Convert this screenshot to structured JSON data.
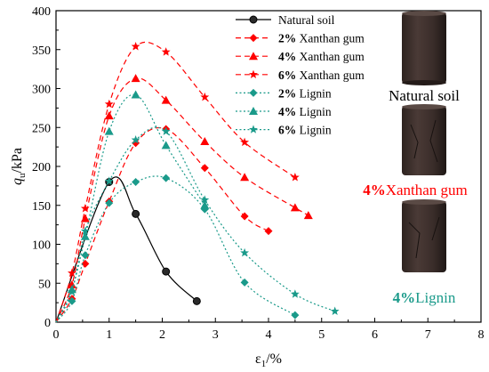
{
  "chart_data": {
    "type": "line",
    "xlabel": "ε₁/%",
    "ylabel": "qᵤ/kPa",
    "ylabel_main": "q",
    "ylabel_sub": "u",
    "ylabel_unit": "/kPa",
    "xlabel_main": "ε",
    "xlabel_sub": "1",
    "xlabel_unit": "/%",
    "xlim": [
      0,
      8
    ],
    "ylim": [
      0,
      400
    ],
    "x_ticks": [
      "0",
      "1",
      "2",
      "3",
      "4",
      "5",
      "6",
      "7",
      "8"
    ],
    "y_ticks": [
      "0",
      "50",
      "100",
      "150",
      "200",
      "250",
      "300",
      "350",
      "400"
    ],
    "grid": false,
    "legend_position": "top-center",
    "series": [
      {
        "name": "Natural soil",
        "legend_bold": "",
        "legend_rest": "Natural soil",
        "color": "#000000",
        "marker": "circle",
        "line": "solid",
        "x": [
          0,
          1.0,
          1.5,
          2.07,
          2.65
        ],
        "y": [
          0,
          180,
          139,
          65,
          27
        ]
      },
      {
        "name": "2% Xanthan gum",
        "legend_bold": "2%",
        "legend_rest": " Xanthan gum",
        "color": "#ff0000",
        "marker": "diamond",
        "line": "dashed",
        "x": [
          0,
          0.3,
          0.55,
          1.0,
          1.5,
          2.07,
          2.8,
          3.55,
          4.0
        ],
        "y": [
          0,
          30,
          75,
          155,
          230,
          248,
          198,
          136,
          117
        ]
      },
      {
        "name": "4% Xanthan gum",
        "legend_bold": "4%",
        "legend_rest": " Xanthan gum",
        "color": "#ff0000",
        "marker": "triangle",
        "line": "dashed",
        "x": [
          0,
          0.3,
          0.55,
          1.0,
          1.5,
          2.07,
          2.8,
          3.55,
          4.5,
          4.75
        ],
        "y": [
          0,
          48,
          133,
          265,
          313,
          285,
          232,
          186,
          147,
          137
        ]
      },
      {
        "name": "6% Xanthan gum",
        "legend_bold": "6%",
        "legend_rest": " Xanthan gum",
        "color": "#ff0000",
        "marker": "star",
        "line": "dashed",
        "x": [
          0,
          0.3,
          0.55,
          1.0,
          1.5,
          2.07,
          2.8,
          3.55,
          4.5
        ],
        "y": [
          0,
          63,
          146,
          280,
          354,
          347,
          289,
          231,
          186
        ]
      },
      {
        "name": "2% Lignin",
        "legend_bold": "2%",
        "legend_rest": " Lignin",
        "color": "#1a9a8a",
        "marker": "diamond",
        "line": "dotted",
        "x": [
          0,
          0.3,
          0.55,
          1.0,
          1.5,
          2.07,
          2.8,
          3.55,
          4.5
        ],
        "y": [
          0,
          27,
          86,
          153,
          180,
          185,
          145,
          51,
          9
        ]
      },
      {
        "name": "4% Lignin",
        "legend_bold": "4%",
        "legend_rest": " Lignin",
        "color": "#1a9a8a",
        "marker": "triangle",
        "line": "dotted",
        "x": [
          0,
          0.3,
          0.55,
          1.0,
          1.5,
          2.07,
          2.8
        ],
        "y": [
          0,
          42,
          110,
          245,
          292,
          227,
          150
        ]
      },
      {
        "name": "6% Lignin",
        "legend_bold": "6%",
        "legend_rest": " Lignin",
        "color": "#1a9a8a",
        "marker": "star",
        "line": "dotted",
        "x": [
          0,
          0.3,
          0.55,
          1.0,
          1.5,
          2.07,
          2.8,
          3.55,
          4.5,
          5.25
        ],
        "y": [
          0,
          39,
          117,
          181,
          234,
          245,
          157,
          89,
          36,
          14
        ]
      }
    ]
  },
  "photos": {
    "natural_caption": "Natural soil",
    "xanthan_caption_bold": "4%",
    "xanthan_caption_rest": "Xanthan gum",
    "lignin_caption_bold": "4%",
    "lignin_caption_rest": "Lignin",
    "xanthan_color": "#ff0000",
    "lignin_color": "#1a9a8a"
  }
}
